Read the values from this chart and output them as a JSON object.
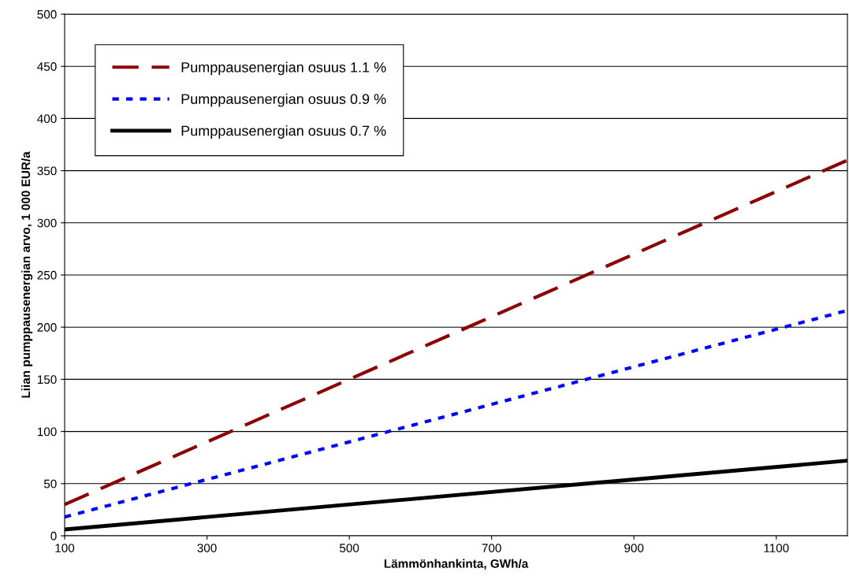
{
  "chart_data": {
    "type": "line",
    "xlabel": "Lämmönhankinta, GWh/a",
    "ylabel": "Liian pumppausenergian arvo, 1 000 EUR/a",
    "x": [
      100,
      1200
    ],
    "series": [
      {
        "name": "Pumppausenergian osuus 1.1 %",
        "color": "#8b0000",
        "line_style": "dashed",
        "values": [
          30,
          360
        ]
      },
      {
        "name": "Pumppausenergian osuus 0.9 %",
        "color": "#0000ff",
        "line_style": "dotted",
        "values": [
          18,
          216
        ]
      },
      {
        "name": "Pumppausenergian osuus 0.7 %",
        "color": "#000000",
        "line_style": "solid",
        "values": [
          6,
          72
        ]
      }
    ],
    "xlim": [
      100,
      1200
    ],
    "xticks": [
      100,
      300,
      500,
      700,
      900,
      1100
    ],
    "ylim": [
      0,
      500
    ],
    "yticks": [
      0,
      50,
      100,
      150,
      200,
      250,
      300,
      350,
      400,
      450,
      500
    ],
    "grid": "y",
    "legend": "top left",
    "marker": "none"
  }
}
